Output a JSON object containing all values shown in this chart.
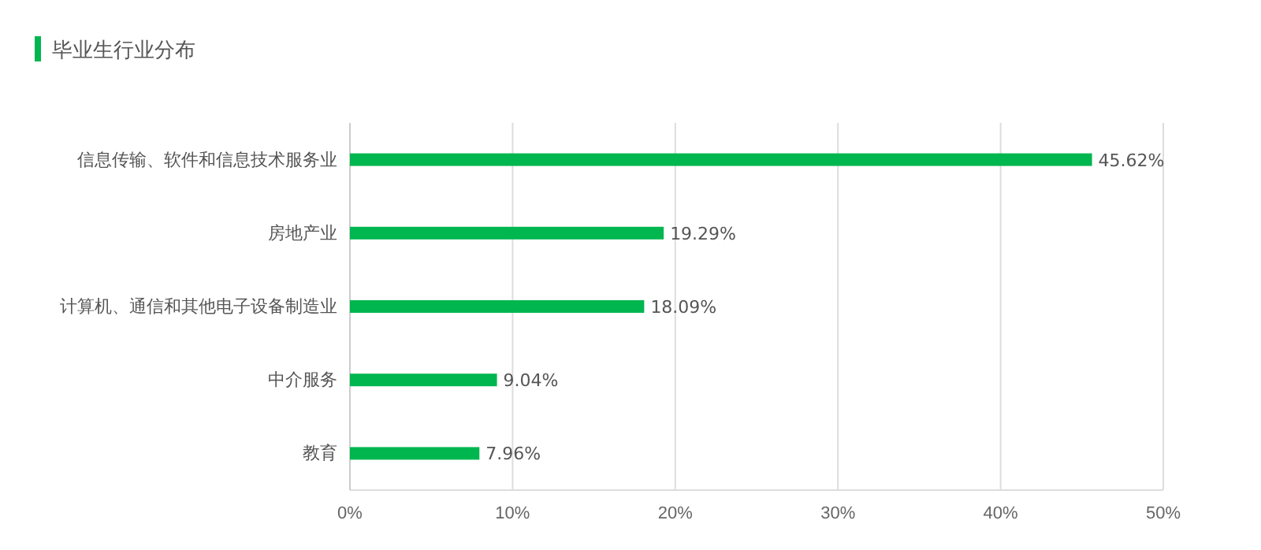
{
  "chart_data": {
    "type": "bar",
    "orientation": "horizontal",
    "title": "毕业生行业分布",
    "categories": [
      "信息传输、软件和信息技术服务业",
      "房地产业",
      "计算机、通信和其他电子设备制造业",
      "中介服务",
      "教育"
    ],
    "values": [
      45.62,
      19.29,
      18.09,
      9.04,
      7.96
    ],
    "value_labels": [
      "45.62%",
      "19.29%",
      "18.09%",
      "9.04%",
      "7.96%"
    ],
    "color": "#00b64f",
    "xlim": [
      0,
      50
    ],
    "xticks": [
      {
        "value": 0,
        "label": "0%"
      },
      {
        "value": 10,
        "label": "10%"
      },
      {
        "value": 20,
        "label": "20%"
      },
      {
        "value": 30,
        "label": "30%"
      },
      {
        "value": 40,
        "label": "40%"
      },
      {
        "value": 50,
        "label": "50%"
      }
    ],
    "grid": "x"
  }
}
